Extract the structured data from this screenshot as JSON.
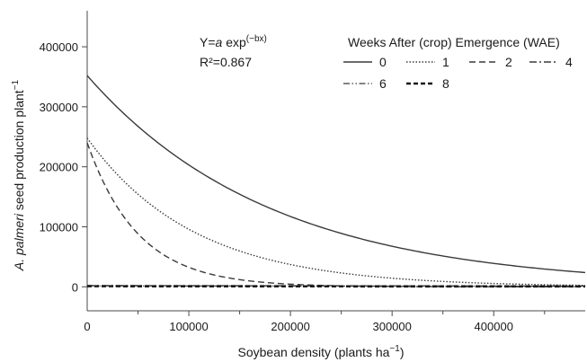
{
  "chart_data": {
    "type": "line",
    "xlabel_pre": "Soybean density (plants ha",
    "xlabel_sup": "−1",
    "xlabel_post": ")",
    "ylabel_italic": "A. palmeri",
    "ylabel_rest": " seed production plant",
    "ylabel_sup": "−1",
    "xlim": [
      0,
      490000
    ],
    "ylim": [
      -40000,
      460000
    ],
    "x_ticks": [
      0,
      100000,
      200000,
      300000,
      400000
    ],
    "x_tick_labels": [
      "0",
      "100000",
      "200000",
      "300000",
      "400000"
    ],
    "y_ticks": [
      0,
      100000,
      200000,
      300000,
      400000
    ],
    "y_tick_labels": [
      "0",
      "100000",
      "200000",
      "300000",
      "400000"
    ],
    "grid": false,
    "model": {
      "equation_pre": "Y=",
      "equation_a": "a",
      "equation_mid": " exp",
      "equation_sup": "(−bx)",
      "r2": "R²=0.867"
    },
    "legend": {
      "title": "Weeks After (crop) Emergence (WAE)",
      "placement": "top-right"
    },
    "series": [
      {
        "name": "0",
        "a": 352000,
        "b": 5.5e-06,
        "dash": "solid",
        "width": 1.4,
        "color": "#3a3a3a"
      },
      {
        "name": "1",
        "a": 248000,
        "b": 9.5e-06,
        "dash": "dotted",
        "width": 1.4,
        "color": "#3a3a3a"
      },
      {
        "name": "2",
        "a": 240000,
        "b": 2e-05,
        "dash": "dashed",
        "width": 1.4,
        "color": "#3a3a3a"
      },
      {
        "name": "4",
        "a": 2000,
        "b": 1e-06,
        "dash": "dashdot",
        "width": 1.4,
        "color": "#3a3a3a"
      },
      {
        "name": "6",
        "a": 1500,
        "b": 1e-06,
        "dash": "dashdotdot",
        "width": 1.2,
        "color": "#3a3a3a"
      },
      {
        "name": "8",
        "a": 1000,
        "b": 1e-06,
        "dash": "heavydash",
        "width": 2.6,
        "color": "#1a1a1a"
      }
    ]
  }
}
